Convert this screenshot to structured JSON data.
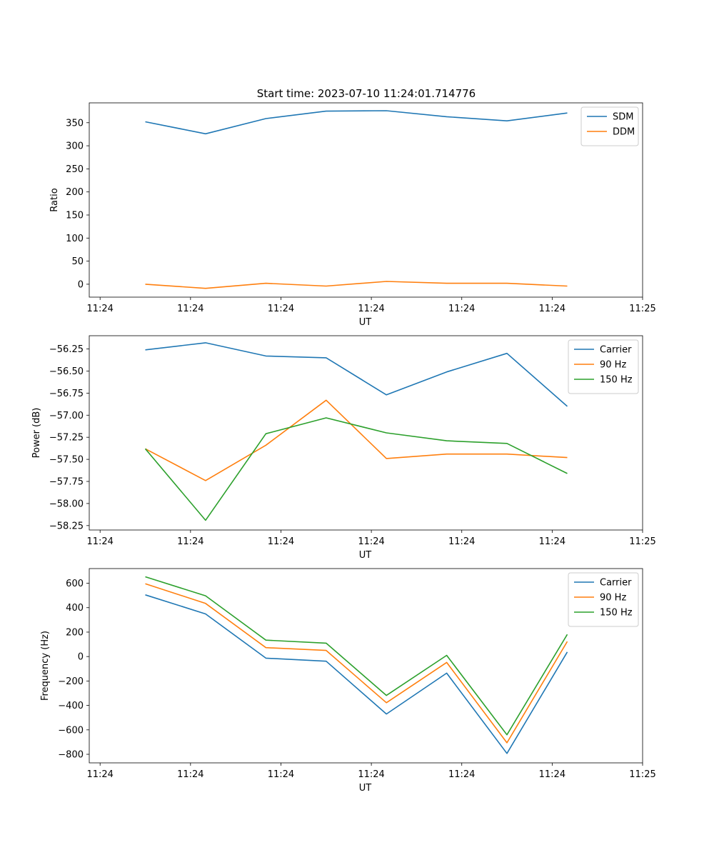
{
  "title": "Start time: 2023-07-10 11:24:01.714776",
  "colors": {
    "blue": "#1f77b4",
    "orange": "#ff7f0e",
    "green": "#2ca02c"
  },
  "chart_data": [
    {
      "type": "line",
      "title": "Start time: 2023-07-10 11:24:01.714776",
      "xlabel": "UT",
      "ylabel": "Ratio",
      "xlim": [
        -0.18,
        9.0
      ],
      "x": [
        0.75,
        1.75,
        2.75,
        3.75,
        4.75,
        5.75,
        6.75,
        7.75
      ],
      "xticks": [
        0,
        1.5,
        3,
        4.5,
        6,
        7.5,
        9
      ],
      "xtick_labels": [
        "11:24",
        "11:24",
        "11:24",
        "11:24",
        "11:24",
        "11:24",
        "11:25"
      ],
      "ylim": [
        -28,
        393
      ],
      "yticks": [
        0,
        50,
        100,
        150,
        200,
        250,
        300,
        350
      ],
      "ytick_labels": [
        "0",
        "50",
        "100",
        "150",
        "200",
        "250",
        "300",
        "350"
      ],
      "legend": "top-right",
      "series": [
        {
          "name": "SDM",
          "color": "#1f77b4",
          "values": [
            352,
            326,
            359,
            375,
            376,
            363,
            354,
            371
          ]
        },
        {
          "name": "DDM",
          "color": "#ff7f0e",
          "values": [
            0,
            -9,
            2,
            -4,
            6,
            2,
            2,
            -4
          ]
        }
      ]
    },
    {
      "type": "line",
      "title": "",
      "xlabel": "UT",
      "ylabel": "Power (dB)",
      "xlim": [
        -0.18,
        9.0
      ],
      "x": [
        0.75,
        1.75,
        2.75,
        3.75,
        4.75,
        5.75,
        6.75,
        7.75
      ],
      "xticks": [
        0,
        1.5,
        3,
        4.5,
        6,
        7.5,
        9
      ],
      "xtick_labels": [
        "11:24",
        "11:24",
        "11:24",
        "11:24",
        "11:24",
        "11:24",
        "11:25"
      ],
      "ylim": [
        -58.3,
        -56.1
      ],
      "yticks": [
        -58.25,
        -58.0,
        -57.75,
        -57.5,
        -57.25,
        -57.0,
        -56.75,
        -56.5,
        -56.25
      ],
      "ytick_labels": [
        "−58.25",
        "−58.00",
        "−57.75",
        "−57.50",
        "−57.25",
        "−57.00",
        "−56.75",
        "−56.50",
        "−56.25"
      ],
      "legend": "top-right",
      "series": [
        {
          "name": "Carrier",
          "color": "#1f77b4",
          "values": [
            -56.26,
            -56.18,
            -56.33,
            -56.35,
            -56.77,
            -56.51,
            -56.3,
            -56.9
          ]
        },
        {
          "name": "90 Hz",
          "color": "#ff7f0e",
          "values": [
            -57.38,
            -57.74,
            -57.34,
            -56.83,
            -57.49,
            -57.44,
            -57.44,
            -57.48
          ]
        },
        {
          "name": "150 Hz",
          "color": "#2ca02c",
          "values": [
            -57.38,
            -58.19,
            -57.21,
            -57.03,
            -57.2,
            -57.29,
            -57.32,
            -57.66
          ]
        }
      ]
    },
    {
      "type": "line",
      "title": "",
      "xlabel": "UT",
      "ylabel": "Frequency (Hz)",
      "xlim": [
        -0.18,
        9.0
      ],
      "x": [
        0.75,
        1.75,
        2.75,
        3.75,
        4.75,
        5.75,
        6.75,
        7.75
      ],
      "xticks": [
        0,
        1.5,
        3,
        4.5,
        6,
        7.5,
        9
      ],
      "xtick_labels": [
        "11:24",
        "11:24",
        "11:24",
        "11:24",
        "11:24",
        "11:24",
        "11:25"
      ],
      "ylim": [
        -870,
        720
      ],
      "yticks": [
        -800,
        -600,
        -400,
        -200,
        0,
        200,
        400,
        600
      ],
      "ytick_labels": [
        "−800",
        "−600",
        "−400",
        "−200",
        "0",
        "200",
        "400",
        "600"
      ],
      "legend": "top-right",
      "series": [
        {
          "name": "Carrier",
          "color": "#1f77b4",
          "values": [
            505,
            349,
            -13,
            -38,
            -470,
            -136,
            -793,
            37
          ]
        },
        {
          "name": "90 Hz",
          "color": "#ff7f0e",
          "values": [
            596,
            435,
            73,
            50,
            -378,
            -48,
            -706,
            123
          ]
        },
        {
          "name": "150 Hz",
          "color": "#2ca02c",
          "values": [
            653,
            497,
            134,
            110,
            -318,
            10,
            -640,
            181
          ]
        }
      ]
    }
  ]
}
